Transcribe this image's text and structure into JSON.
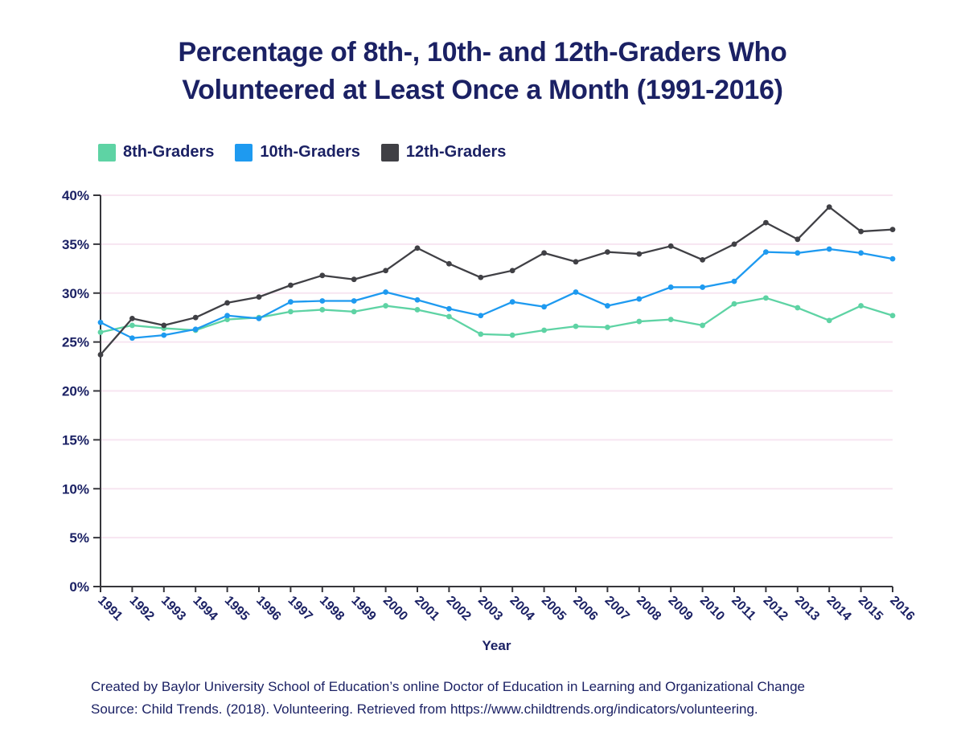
{
  "title": {
    "line1": "Percentage of 8th-, 10th- and 12th-Graders Who",
    "line2": "Volunteered at Least Once a Month (1991-2016)"
  },
  "legend": {
    "items": [
      {
        "label": "8th-Graders",
        "color": "#5ed3a4"
      },
      {
        "label": "10th-Graders",
        "color": "#1e9af0"
      },
      {
        "label": "12th-Graders",
        "color": "#404045"
      }
    ]
  },
  "chart_data": {
    "type": "line",
    "title": "Percentage of 8th-, 10th- and 12th-Graders Who Volunteered at Least Once a Month (1991-2016)",
    "xlabel": "Year",
    "ylabel": "",
    "x": [
      1991,
      1992,
      1993,
      1994,
      1995,
      1996,
      1997,
      1998,
      1999,
      2000,
      2001,
      2002,
      2003,
      2004,
      2005,
      2006,
      2007,
      2008,
      2009,
      2010,
      2011,
      2012,
      2013,
      2014,
      2015,
      2016
    ],
    "series": [
      {
        "name": "8th-Graders",
        "color": "#5ed3a4",
        "values": [
          26.0,
          26.7,
          26.4,
          26.2,
          27.3,
          27.5,
          28.1,
          28.3,
          28.1,
          28.7,
          28.3,
          27.6,
          25.8,
          25.7,
          26.2,
          26.6,
          26.5,
          27.1,
          27.3,
          26.7,
          28.9,
          29.5,
          28.5,
          27.2,
          28.7,
          27.7
        ]
      },
      {
        "name": "10th-Graders",
        "color": "#1e9af0",
        "values": [
          27.0,
          25.4,
          25.7,
          26.3,
          27.7,
          27.4,
          29.1,
          29.2,
          29.2,
          30.1,
          29.3,
          28.4,
          27.7,
          29.1,
          28.6,
          30.1,
          28.7,
          29.4,
          30.6,
          30.6,
          31.2,
          34.2,
          34.1,
          34.5,
          34.1,
          33.5
        ]
      },
      {
        "name": "12th-Graders",
        "color": "#404045",
        "values": [
          23.7,
          27.4,
          26.7,
          27.5,
          29.0,
          29.6,
          30.8,
          31.8,
          31.4,
          32.3,
          34.6,
          33.0,
          31.6,
          32.3,
          34.1,
          33.2,
          34.2,
          34.0,
          34.8,
          33.4,
          35.0,
          37.2,
          35.5,
          38.8,
          36.3,
          36.5
        ]
      }
    ],
    "ylim": [
      0,
      40
    ],
    "ytick_step": 5,
    "ytick_suffix": "%",
    "grid": true,
    "legend_position": "top-left"
  },
  "axis": {
    "x_title": "Year"
  },
  "footer": {
    "line1": "Created by Baylor University School of Education’s online Doctor of Education in Learning and Organizational Change",
    "line2": "Source: Child Trends. (2018). Volunteering. Retrieved from https://www.childtrends.org/indicators/volunteering."
  },
  "colors": {
    "text_navy": "#1b2164",
    "gridline": "#f7e5f1",
    "axis": "#36363b",
    "background": "#ffffff"
  }
}
